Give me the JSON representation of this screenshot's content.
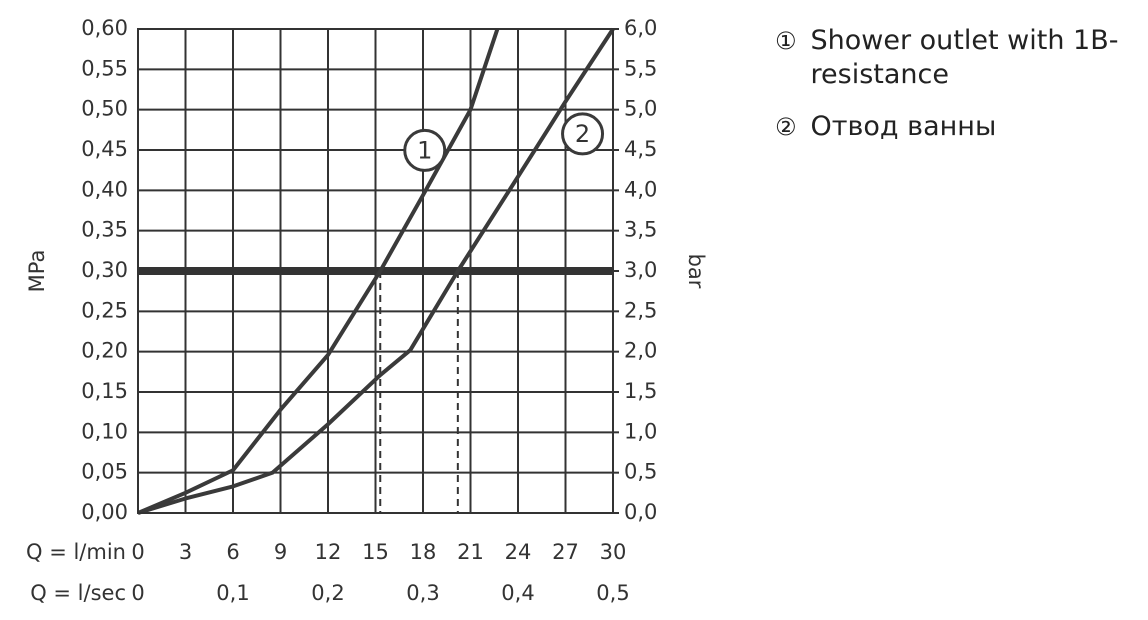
{
  "chart_data": {
    "type": "line",
    "xlabel": "Q = l/min",
    "x2label": "Q = l/sec",
    "ylabel": "MPa",
    "y2label": "bar",
    "xlim": [
      0,
      30
    ],
    "xticks": [
      0,
      3,
      6,
      9,
      12,
      15,
      18,
      21,
      24,
      27,
      30
    ],
    "x2lim": [
      0,
      0.5
    ],
    "x2ticks": [
      0,
      {
        "value": 0.1,
        "label": "0,1"
      },
      {
        "value": 0.2,
        "label": "0,2"
      },
      {
        "value": 0.3,
        "label": "0,3"
      },
      {
        "value": 0.4,
        "label": "0,4"
      },
      {
        "value": 0.5,
        "label": "0,5"
      }
    ],
    "ylim": [
      0,
      0.6
    ],
    "yticks": [
      {
        "value": 0,
        "label": "0,00"
      },
      {
        "value": 0.05,
        "label": "0,05"
      },
      {
        "value": 0.1,
        "label": "0,10"
      },
      {
        "value": 0.15,
        "label": "0,15"
      },
      {
        "value": 0.2,
        "label": "0,20"
      },
      {
        "value": 0.25,
        "label": "0,25"
      },
      {
        "value": 0.3,
        "label": "0,30"
      },
      {
        "value": 0.35,
        "label": "0,35"
      },
      {
        "value": 0.4,
        "label": "0,40"
      },
      {
        "value": 0.45,
        "label": "0,45"
      },
      {
        "value": 0.5,
        "label": "0,50"
      },
      {
        "value": 0.55,
        "label": "0,55"
      },
      {
        "value": 0.6,
        "label": "0,60"
      }
    ],
    "y2lim": [
      0,
      6
    ],
    "y2ticks": [
      {
        "value": 0,
        "label": "0,0"
      },
      {
        "value": 0.5,
        "label": "0,5"
      },
      {
        "value": 1,
        "label": "1,0"
      },
      {
        "value": 1.5,
        "label": "1,5"
      },
      {
        "value": 2,
        "label": "2,0"
      },
      {
        "value": 2.5,
        "label": "2,5"
      },
      {
        "value": 3,
        "label": "3,0"
      },
      {
        "value": 3.5,
        "label": "3,5"
      },
      {
        "value": 4,
        "label": "4,0"
      },
      {
        "value": 4.5,
        "label": "4,5"
      },
      {
        "value": 5,
        "label": "5,0"
      },
      {
        "value": 5.5,
        "label": "5,5"
      },
      {
        "value": 6,
        "label": "6,0"
      }
    ],
    "grid": true,
    "threshold": 0.3,
    "threshold_x": [
      15.3,
      20.2
    ],
    "series": [
      {
        "name": "Shower outlet with 1B-resistance",
        "number": "1",
        "legend_symbol": "①",
        "color": "#3a3a3a",
        "x": [
          0,
          3,
          6,
          9,
          12,
          15.3,
          18,
          21,
          22.7
        ],
        "values": [
          0,
          0.025,
          0.053,
          0.128,
          0.196,
          0.3,
          0.394,
          0.5,
          0.6
        ]
      },
      {
        "name": "Отвод ванны",
        "number": "2",
        "legend_symbol": "②",
        "color": "#3a3a3a",
        "x": [
          0,
          3,
          6,
          8.5,
          12,
          15.3,
          17.2,
          20.2,
          24.1,
          27,
          30
        ],
        "values": [
          0,
          0.018,
          0.033,
          0.05,
          0.11,
          0.171,
          0.202,
          0.3,
          0.42,
          0.51,
          0.6
        ]
      }
    ]
  }
}
